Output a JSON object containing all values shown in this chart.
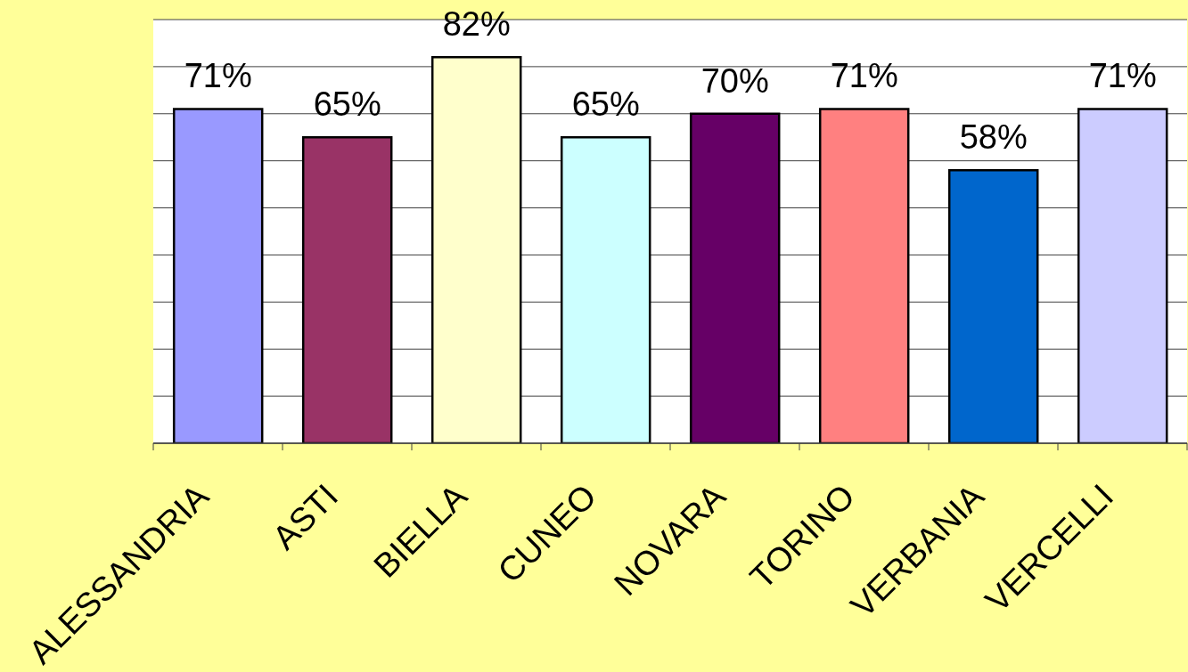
{
  "chart_data": {
    "type": "bar",
    "categories": [
      "ALESSANDRIA",
      "ASTI",
      "BIELLA",
      "CUNEO",
      "NOVARA",
      "TORINO",
      "VERBANIA",
      "VERCELLI"
    ],
    "values": [
      71,
      65,
      82,
      65,
      70,
      71,
      58,
      71
    ],
    "colors": [
      "#9999ff",
      "#993366",
      "#ffffcc",
      "#ccffff",
      "#660066",
      "#ff8080",
      "#0066cc",
      "#ccccff"
    ],
    "value_labels": [
      "71%",
      "65%",
      "82%",
      "65%",
      "70%",
      "71%",
      "58%",
      "71%"
    ],
    "ylim": [
      0,
      90
    ],
    "grid": "y",
    "tick_labels": "x"
  }
}
